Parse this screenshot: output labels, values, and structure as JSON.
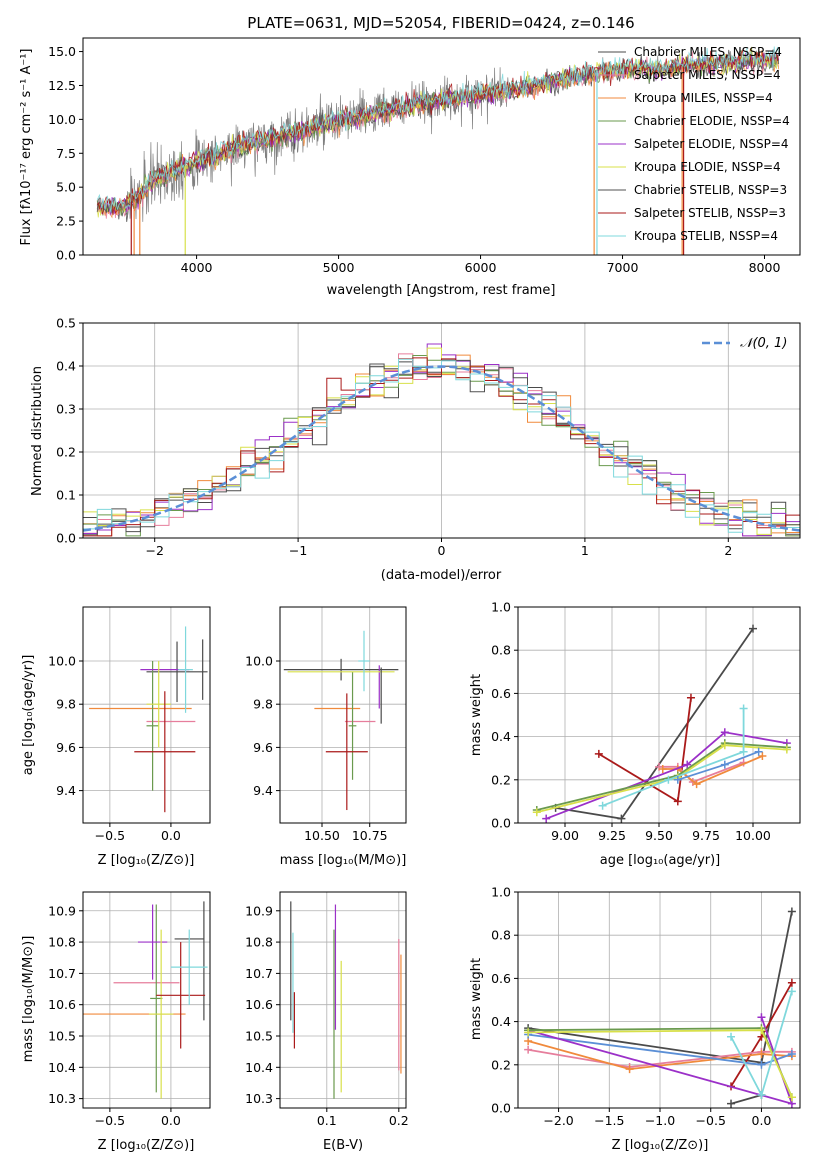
{
  "figure": {
    "title": "PLATE=0631, MJD=52054, FIBERID=0424, z=0.146"
  },
  "labels": {
    "spec_xlabel": "wavelength [Angstrom, rest frame]",
    "spec_ylabel": "Flux [fλ10⁻¹⁷ erg cm⁻² s⁻¹ A⁻¹]",
    "hist_xlabel": "(data-model)/error",
    "hist_ylabel": "Normed distribution",
    "age_label": "age  [log₁₀(age/yr)]",
    "age_label_x": "age  [log₁₀(age/yr)]",
    "z_label": "Z [log₁₀(Z/Z⊙)]",
    "mass_label": "mass [log₁₀(M/M⊙)]",
    "mass_weight_label": "mass weight",
    "ebv_label": "E(B-V)"
  },
  "chart_data": [
    {
      "id": "spectrum",
      "type": "line",
      "xlim": [
        3200,
        8250
      ],
      "ylim": [
        0,
        16
      ],
      "xticks": [
        4000,
        5000,
        6000,
        7000,
        8000
      ],
      "yticks": [
        0.0,
        2.5,
        5.0,
        7.5,
        10.0,
        12.5,
        15.0
      ],
      "grid": false,
      "legend_position": "top-right",
      "continuum": {
        "x": [
          3300,
          3500,
          3700,
          3900,
          4100,
          4300,
          4500,
          4700,
          4900,
          5100,
          5300,
          5500,
          5700,
          5900,
          6100,
          6300,
          6500,
          6700,
          6900,
          7100,
          7300,
          7500,
          7700,
          7900,
          8100
        ],
        "y": [
          3.6,
          3.5,
          5.5,
          6.5,
          7.2,
          8.0,
          8.5,
          9.0,
          9.6,
          10.1,
          10.6,
          11.0,
          11.4,
          11.7,
          12.0,
          12.3,
          12.8,
          13.2,
          13.6,
          13.8,
          13.7,
          14.0,
          14.2,
          14.3,
          14.4
        ]
      },
      "series": [
        {
          "name": "Chabrier MILES, NSSP=4",
          "color": "#4a4a4a"
        },
        {
          "name": "Salpeter MILES, NSSP=4",
          "color": "#e67e9c"
        },
        {
          "name": "Kroupa MILES, NSSP=4",
          "color": "#f08a3c"
        },
        {
          "name": "Chabrier ELODIE, NSSP=4",
          "color": "#6a9a4e"
        },
        {
          "name": "Salpeter ELODIE, NSSP=4",
          "color": "#9b30c8"
        },
        {
          "name": "Kroupa ELODIE, NSSP=4",
          "color": "#d8e04a"
        },
        {
          "name": "Chabrier STELIB, NSSP=3",
          "color": "#505050"
        },
        {
          "name": "Salpeter STELIB, NSSP=3",
          "color": "#aa1a1a"
        },
        {
          "name": "Kroupa STELIB, NSSP=4",
          "color": "#7fd8dc"
        }
      ]
    },
    {
      "id": "residuals",
      "type": "line",
      "xlim": [
        -2.5,
        2.5
      ],
      "ylim": [
        0,
        0.5
      ],
      "xticks": [
        -2,
        -1,
        0,
        1,
        2
      ],
      "yticks": [
        0.0,
        0.1,
        0.2,
        0.3,
        0.4,
        0.5
      ],
      "grid": true,
      "legend_position": "top-right",
      "gaussian_label": "𝒩(0, 1)",
      "gaussian_color": "#5b8fd6"
    },
    {
      "id": "z_age",
      "type": "scatter",
      "xlim": [
        -0.72,
        0.32
      ],
      "ylim": [
        9.25,
        10.25
      ],
      "xticks": [
        -0.5,
        0.0
      ],
      "yticks": [
        9.4,
        9.6,
        9.8,
        10.0
      ],
      "grid": true,
      "points": [
        {
          "x": 0.05,
          "y": 9.95,
          "xerr": 0.25,
          "yerr": 0.14,
          "color": "#4a4a4a"
        },
        {
          "x": 0.0,
          "y": 9.72,
          "xerr": 0.2,
          "yerr": 0.0,
          "color": "#e67e9c"
        },
        {
          "x": -0.25,
          "y": 9.78,
          "xerr": 0.42,
          "yerr": 0.0,
          "color": "#f08a3c"
        },
        {
          "x": -0.15,
          "y": 9.7,
          "xerr": 0.05,
          "yerr": 0.3,
          "color": "#6a9a4e"
        },
        {
          "x": -0.05,
          "y": 9.96,
          "xerr": 0.2,
          "yerr": 0.0,
          "color": "#9b30c8"
        },
        {
          "x": -0.1,
          "y": 9.8,
          "xerr": 0.1,
          "yerr": 0.2,
          "color": "#d8e04a"
        },
        {
          "x": 0.26,
          "y": 9.96,
          "xerr": 0.0,
          "yerr": 0.14,
          "color": "#4a4a4a"
        },
        {
          "x": -0.05,
          "y": 9.58,
          "xerr": 0.25,
          "yerr": 0.28,
          "color": "#aa1a1a"
        },
        {
          "x": 0.12,
          "y": 9.96,
          "xerr": 0.06,
          "yerr": 0.2,
          "color": "#7fd8dc"
        }
      ]
    },
    {
      "id": "mass_age",
      "type": "scatter",
      "xlim": [
        10.28,
        10.94
      ],
      "ylim": [
        9.25,
        10.25
      ],
      "xticks": [
        10.5,
        10.75
      ],
      "yticks": [
        9.4,
        9.6,
        9.8,
        10.0
      ],
      "grid": true,
      "points": [
        {
          "x": 10.6,
          "y": 9.96,
          "xerr": 0.3,
          "yerr": 0.05,
          "color": "#4a4a4a"
        },
        {
          "x": 10.7,
          "y": 9.72,
          "xerr": 0.08,
          "yerr": 0.0,
          "color": "#e67e9c"
        },
        {
          "x": 10.58,
          "y": 9.78,
          "xerr": 0.12,
          "yerr": 0.0,
          "color": "#f08a3c"
        },
        {
          "x": 10.66,
          "y": 9.7,
          "xerr": 0.02,
          "yerr": 0.25,
          "color": "#6a9a4e"
        },
        {
          "x": 10.8,
          "y": 9.88,
          "xerr": 0.0,
          "yerr": 0.1,
          "color": "#9b30c8"
        },
        {
          "x": 10.6,
          "y": 9.95,
          "xerr": 0.28,
          "yerr": 0.0,
          "color": "#d8e04a"
        },
        {
          "x": 10.81,
          "y": 9.84,
          "xerr": 0.0,
          "yerr": 0.13,
          "color": "#4a4a4a"
        },
        {
          "x": 10.63,
          "y": 9.58,
          "xerr": 0.11,
          "yerr": 0.27,
          "color": "#aa1a1a"
        },
        {
          "x": 10.72,
          "y": 10.0,
          "xerr": 0.03,
          "yerr": 0.14,
          "color": "#7fd8dc"
        }
      ]
    },
    {
      "id": "age_weight",
      "type": "line",
      "xlim": [
        8.75,
        10.25
      ],
      "ylim": [
        0,
        1.0
      ],
      "xticks": [
        9.0,
        9.25,
        9.5,
        9.75,
        10.0
      ],
      "xticklabels": [
        "9.00",
        "9.25",
        "9.50",
        "9.75",
        "10.00"
      ],
      "yticks": [
        0.0,
        0.2,
        0.4,
        0.6,
        0.8,
        1.0
      ],
      "grid": true,
      "series": [
        {
          "color": "#4a4a4a",
          "x": [
            8.95,
            9.3,
            10.0
          ],
          "y": [
            0.07,
            0.02,
            0.9
          ]
        },
        {
          "color": "#aa1a1a",
          "x": [
            9.18,
            9.6,
            9.67
          ],
          "y": [
            0.32,
            0.1,
            0.58
          ]
        },
        {
          "color": "#e67e9c",
          "x": [
            9.5,
            9.6,
            9.68,
            9.95
          ],
          "y": [
            0.26,
            0.26,
            0.19,
            0.28
          ]
        },
        {
          "color": "#f08a3c",
          "x": [
            9.52,
            9.6,
            9.7,
            10.05
          ],
          "y": [
            0.25,
            0.25,
            0.18,
            0.31
          ]
        },
        {
          "color": "#9b30c8",
          "x": [
            8.9,
            9.65,
            9.85,
            10.18
          ],
          "y": [
            0.02,
            0.27,
            0.42,
            0.37
          ]
        },
        {
          "color": "#6a9a4e",
          "x": [
            8.85,
            9.6,
            9.85,
            10.18
          ],
          "y": [
            0.06,
            0.22,
            0.37,
            0.35
          ]
        },
        {
          "color": "#d8e04a",
          "x": [
            8.85,
            9.6,
            9.85,
            10.18
          ],
          "y": [
            0.05,
            0.21,
            0.36,
            0.34
          ]
        },
        {
          "color": "#7fd8dc",
          "x": [
            9.2,
            9.55,
            9.95,
            9.95
          ],
          "y": [
            0.08,
            0.2,
            0.33,
            0.53
          ]
        },
        {
          "color": "#5b8fd6",
          "x": [
            9.6,
            9.85,
            10.03
          ],
          "y": [
            0.2,
            0.27,
            0.33
          ]
        }
      ]
    },
    {
      "id": "z_mass",
      "type": "scatter",
      "xlim": [
        -0.72,
        0.32
      ],
      "ylim": [
        10.27,
        10.96
      ],
      "xticks": [
        -0.5,
        0.0
      ],
      "yticks": [
        10.3,
        10.4,
        10.5,
        10.6,
        10.7,
        10.8,
        10.9
      ],
      "grid": true,
      "points": [
        {
          "x": 0.15,
          "y": 10.81,
          "xerr": 0.12,
          "yerr": 0.0,
          "color": "#4a4a4a"
        },
        {
          "x": -0.2,
          "y": 10.67,
          "xerr": 0.27,
          "yerr": 0.0,
          "color": "#e67e9c"
        },
        {
          "x": -0.3,
          "y": 10.57,
          "xerr": 0.42,
          "yerr": 0.0,
          "color": "#f08a3c"
        },
        {
          "x": -0.12,
          "y": 10.62,
          "xerr": 0.05,
          "yerr": 0.3,
          "color": "#6a9a4e"
        },
        {
          "x": -0.15,
          "y": 10.8,
          "xerr": 0.12,
          "yerr": 0.12,
          "color": "#9b30c8"
        },
        {
          "x": -0.08,
          "y": 10.57,
          "xerr": 0.1,
          "yerr": 0.27,
          "color": "#d8e04a"
        },
        {
          "x": 0.27,
          "y": 10.74,
          "xerr": 0.0,
          "yerr": 0.19,
          "color": "#4a4a4a"
        },
        {
          "x": 0.08,
          "y": 10.63,
          "xerr": 0.2,
          "yerr": 0.17,
          "color": "#aa1a1a"
        },
        {
          "x": 0.15,
          "y": 10.72,
          "xerr": 0.15,
          "yerr": 0.12,
          "color": "#7fd8dc"
        }
      ]
    },
    {
      "id": "ebv_mass",
      "type": "scatter",
      "xlim": [
        0.035,
        0.21
      ],
      "ylim": [
        10.27,
        10.96
      ],
      "xticks": [
        0.1,
        0.2
      ],
      "yticks": [
        10.3,
        10.4,
        10.5,
        10.6,
        10.7,
        10.8,
        10.9
      ],
      "grid": true,
      "points": [
        {
          "x": 0.05,
          "y": 10.74,
          "yerr": 0.19,
          "color": "#4a4a4a"
        },
        {
          "x": 0.053,
          "y": 10.67,
          "yerr": 0.16,
          "color": "#7fd8dc"
        },
        {
          "x": 0.055,
          "y": 10.55,
          "yerr": 0.09,
          "color": "#aa1a1a"
        },
        {
          "x": 0.11,
          "y": 10.57,
          "yerr": 0.27,
          "color": "#6a9a4e"
        },
        {
          "x": 0.112,
          "y": 10.72,
          "yerr": 0.2,
          "color": "#9b30c8"
        },
        {
          "x": 0.12,
          "y": 10.53,
          "yerr": 0.21,
          "color": "#d8e04a"
        },
        {
          "x": 0.2,
          "y": 10.6,
          "yerr": 0.21,
          "color": "#e67e9c"
        },
        {
          "x": 0.203,
          "y": 10.57,
          "yerr": 0.19,
          "color": "#f08a3c"
        }
      ]
    },
    {
      "id": "z_weight",
      "type": "line",
      "xlim": [
        -2.4,
        0.38
      ],
      "ylim": [
        0,
        1.0
      ],
      "xticks": [
        -2.0,
        -1.5,
        -1.0,
        -0.5,
        0.0
      ],
      "yticks": [
        0.0,
        0.2,
        0.4,
        0.6,
        0.8,
        1.0
      ],
      "grid": true,
      "series": [
        {
          "color": "#4a4a4a",
          "x": [
            -2.3,
            0.0,
            0.3
          ],
          "y": [
            0.37,
            0.21,
            0.91
          ]
        },
        {
          "color": "#4a4a4a",
          "x": [
            -0.3,
            0.0
          ],
          "y": [
            0.02,
            0.06
          ]
        },
        {
          "color": "#aa1a1a",
          "x": [
            -0.3,
            0.0,
            0.3
          ],
          "y": [
            0.1,
            0.33,
            0.58
          ]
        },
        {
          "color": "#e67e9c",
          "x": [
            -2.3,
            -1.3,
            0.0,
            0.3
          ],
          "y": [
            0.27,
            0.19,
            0.26,
            0.26
          ]
        },
        {
          "color": "#f08a3c",
          "x": [
            -2.3,
            -1.3,
            0.0,
            0.3
          ],
          "y": [
            0.31,
            0.18,
            0.25,
            0.24
          ]
        },
        {
          "color": "#5b8fd6",
          "x": [
            -2.3,
            0.0,
            0.3
          ],
          "y": [
            0.34,
            0.2,
            0.25
          ]
        },
        {
          "color": "#9b30c8",
          "x": [
            0.0,
            0.3,
            -2.3
          ],
          "y": [
            0.42,
            0.02,
            0.36
          ]
        },
        {
          "color": "#6a9a4e",
          "x": [
            -2.3,
            0.0,
            0.3
          ],
          "y": [
            0.36,
            0.37,
            0.05
          ]
        },
        {
          "color": "#d8e04a",
          "x": [
            -2.3,
            0.0,
            0.3
          ],
          "y": [
            0.35,
            0.36,
            0.05
          ]
        },
        {
          "color": "#7fd8dc",
          "x": [
            -0.3,
            0.0,
            0.3
          ],
          "y": [
            0.33,
            0.06,
            0.54
          ]
        }
      ]
    }
  ]
}
